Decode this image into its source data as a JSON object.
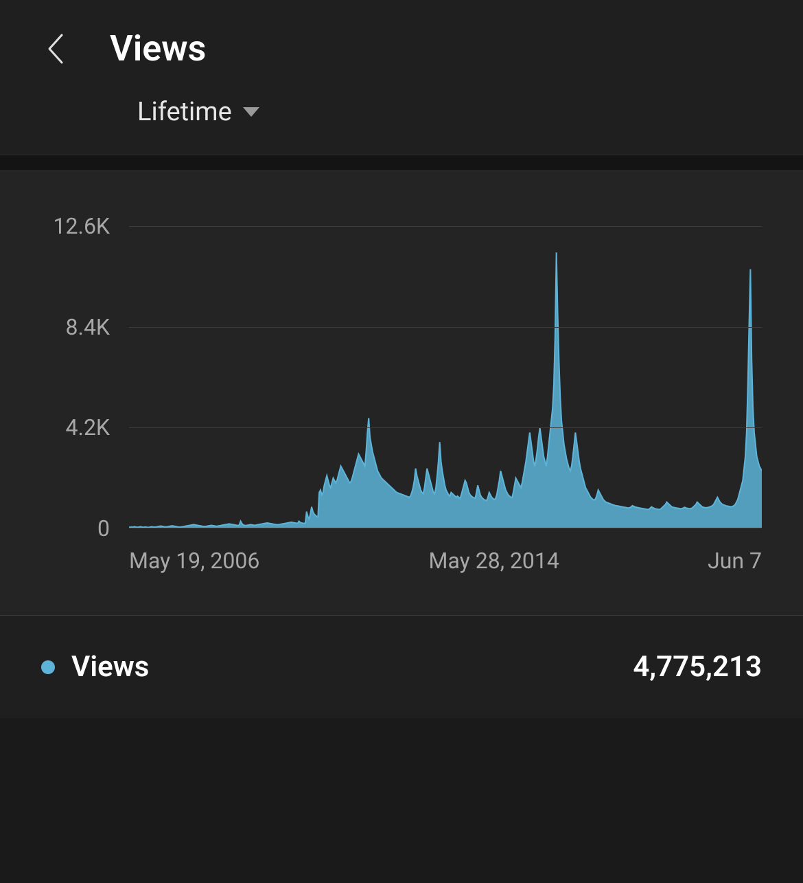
{
  "header": {
    "title": "Views",
    "back_icon_color": "#e0e0e0"
  },
  "filter": {
    "label": "Lifetime",
    "caret_color": "#9a9a9a"
  },
  "chart": {
    "type": "area",
    "series_color": "#5db4d8",
    "series_fill": "#5db4d8",
    "background_color": "#242424",
    "grid_color": "#3c3c3c",
    "axis_text_color": "#a8a8a8",
    "axis_fontsize": 32,
    "ylim": [
      0,
      12600
    ],
    "y_ticks": [
      "12.6K",
      "8.4K",
      "4.2K",
      "0"
    ],
    "y_tick_values": [
      12600,
      8400,
      4200,
      0
    ],
    "x_ticks": [
      "May 19, 2006",
      "May 28, 2014",
      "Jun 7"
    ],
    "line_width": 2,
    "values": [
      50,
      50,
      60,
      50,
      70,
      60,
      55,
      50,
      60,
      70,
      60,
      50,
      55,
      60,
      50,
      45,
      50,
      60,
      70,
      60,
      55,
      60,
      70,
      80,
      90,
      100,
      90,
      80,
      70,
      60,
      70,
      80,
      90,
      100,
      110,
      100,
      90,
      80,
      70,
      60,
      55,
      60,
      70,
      80,
      90,
      100,
      110,
      120,
      130,
      140,
      150,
      160,
      150,
      140,
      130,
      120,
      110,
      100,
      90,
      80,
      85,
      90,
      100,
      110,
      120,
      130,
      120,
      110,
      100,
      90,
      100,
      110,
      120,
      130,
      140,
      150,
      160,
      170,
      180,
      190,
      180,
      170,
      160,
      150,
      140,
      130,
      120,
      150,
      300,
      200,
      150,
      130,
      120,
      130,
      140,
      150,
      160,
      150,
      140,
      130,
      140,
      150,
      160,
      170,
      180,
      190,
      200,
      210,
      220,
      230,
      220,
      210,
      200,
      190,
      180,
      170,
      160,
      150,
      160,
      170,
      180,
      190,
      200,
      210,
      220,
      230,
      240,
      250,
      260,
      250,
      240,
      230,
      220,
      210,
      300,
      250,
      230,
      220,
      210,
      220,
      700,
      500,
      400,
      600,
      900,
      700,
      600,
      550,
      500,
      480,
      1500,
      1600,
      1400,
      1500,
      1800,
      2000,
      2200,
      2000,
      1800,
      1700,
      1900,
      2100,
      2000,
      1900,
      2000,
      2200,
      2400,
      2600,
      2500,
      2400,
      2300,
      2200,
      2100,
      2000,
      1900,
      1950,
      2100,
      2300,
      2500,
      2700,
      2900,
      3100,
      3000,
      2900,
      2800,
      2700,
      2600,
      3200,
      4000,
      4600,
      3800,
      3500,
      3200,
      3000,
      2800,
      2600,
      2400,
      2300,
      2200,
      2100,
      2050,
      2000,
      1950,
      1900,
      1850,
      1800,
      1750,
      1700,
      1650,
      1600,
      1550,
      1500,
      1480,
      1460,
      1440,
      1420,
      1400,
      1380,
      1360,
      1340,
      1320,
      1300,
      1350,
      1500,
      1700,
      2000,
      2500,
      2200,
      2000,
      1800,
      1600,
      1500,
      1450,
      1700,
      2100,
      2500,
      2300,
      2100,
      1900,
      1700,
      1500,
      1450,
      1700,
      2200,
      2800,
      3600,
      2800,
      2400,
      2100,
      1800,
      1600,
      1500,
      1400,
      1350,
      1500,
      1450,
      1400,
      1350,
      1300,
      1350,
      1300,
      1250,
      1400,
      1600,
      1800,
      2000,
      1900,
      1700,
      1500,
      1400,
      1350,
      1300,
      1280,
      1260,
      1500,
      1800,
      1600,
      1400,
      1300,
      1250,
      1200,
      1180,
      1160,
      1300,
      1500,
      1400,
      1300,
      1250,
      1200,
      1250,
      1400,
      1700,
      2000,
      2400,
      2200,
      2000,
      1800,
      1600,
      1500,
      1400,
      1350,
      1300,
      1280,
      1500,
      1800,
      2100,
      2000,
      1900,
      1800,
      1700,
      1900,
      2200,
      2500,
      2800,
      3200,
      3600,
      4000,
      3600,
      3200,
      2800,
      2600,
      2900,
      3300,
      3800,
      4200,
      3800,
      3400,
      3000,
      2800,
      2600,
      3000,
      3500,
      4000,
      4500,
      5000,
      6000,
      8000,
      11500,
      9000,
      7000,
      5500,
      4500,
      4000,
      3500,
      3200,
      2900,
      2700,
      2500,
      2400,
      2600,
      3000,
      3500,
      4000,
      3600,
      3200,
      2800,
      2500,
      2300,
      2100,
      1900,
      1700,
      1600,
      1500,
      1400,
      1300,
      1250,
      1200,
      1180,
      1250,
      1400,
      1600,
      1500,
      1400,
      1300,
      1200,
      1150,
      1100,
      1080,
      1060,
      1040,
      1020,
      1000,
      980,
      960,
      950,
      940,
      930,
      920,
      910,
      900,
      890,
      880,
      870,
      860,
      850,
      870,
      900,
      950,
      920,
      900,
      880,
      870,
      860,
      850,
      840,
      830,
      820,
      810,
      800,
      790,
      800,
      850,
      900,
      870,
      840,
      820,
      810,
      800,
      790,
      800,
      850,
      900,
      950,
      1000,
      1100,
      1050,
      1000,
      950,
      900,
      880,
      870,
      860,
      850,
      840,
      830,
      820,
      830,
      850,
      880,
      860,
      840,
      830,
      820,
      830,
      850,
      900,
      950,
      1000,
      1100,
      1050,
      1000,
      950,
      900,
      880,
      870,
      860,
      870,
      880,
      900,
      920,
      950,
      1000,
      1100,
      1200,
      1300,
      1200,
      1100,
      1050,
      1000,
      980,
      960,
      940,
      930,
      920,
      910,
      900,
      920,
      950,
      1000,
      1100,
      1200,
      1400,
      1600,
      1800,
      2000,
      2500,
      3000,
      4000,
      6000,
      8500,
      10800,
      7000,
      5000,
      4000,
      3500,
      3000,
      2800,
      2600,
      2500,
      2400
    ]
  },
  "summary": {
    "dot_color": "#5db4d8",
    "label": "Views",
    "value": "4,775,213"
  },
  "colors": {
    "page_bg": "#1a1a1a",
    "header_bg": "#1f1f1f",
    "panel_bg": "#242424",
    "text_primary": "#ffffff",
    "text_secondary": "#a8a8a8",
    "divider": "#3a3a3a"
  }
}
